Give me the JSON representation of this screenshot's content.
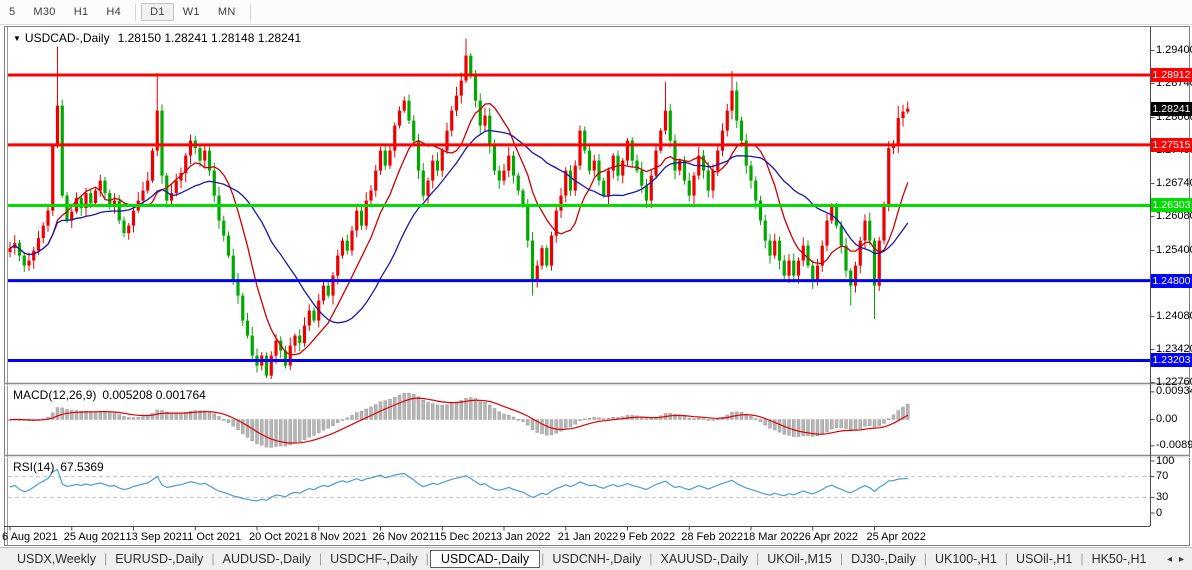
{
  "toolbar": {
    "timeframes": [
      "5",
      "M30",
      "H1",
      "H4",
      "D1",
      "W1",
      "MN"
    ],
    "active": "D1"
  },
  "chart": {
    "title": {
      "dropdown_icon": "▼",
      "symbol": "USDCAD-,Daily",
      "ohlc": "1.28150 1.28241 1.28148 1.28241"
    }
  },
  "indicators": {
    "macd": {
      "name": "MACD(12,26,9)",
      "values": "0.005208 0.001764"
    },
    "rsi": {
      "name": "RSI(14)",
      "value": "67.5369"
    }
  },
  "chart_data": {
    "type": "candlestick",
    "symbol": "USDCAD",
    "period": "Daily",
    "ohlc_current": {
      "open": "1.28150",
      "high": "1.28241",
      "low": "1.28148",
      "close": "1.28241"
    },
    "y_axis": {
      "ticks": [
        "1.29400",
        "1.28740",
        "1.28060",
        "1.27400",
        "1.26740",
        "1.26080",
        "1.25400",
        "1.24740",
        "1.24080",
        "1.23420",
        "1.22760"
      ]
    },
    "x_axis": {
      "labels": [
        "6 Aug 2021",
        "25 Aug 2021",
        "13 Sep 2021",
        "1 Oct 2021",
        "20 Oct 2021",
        "8 Nov 2021",
        "26 Nov 2021",
        "15 Dec 2021",
        "3 Jan 2022",
        "21 Jan 2022",
        "9 Feb 2022",
        "28 Feb 2022",
        "18 Mar 2022",
        "6 Apr 2022",
        "25 Apr 2022"
      ],
      "bar_indices": [
        0,
        13,
        26,
        39,
        52,
        65,
        78,
        91,
        104,
        117,
        130,
        143,
        156,
        169,
        182
      ]
    },
    "horizontal_lines": [
      {
        "price": "1.28912",
        "color": "#FF0000"
      },
      {
        "price": "1.27515",
        "color": "#FF0000"
      },
      {
        "price": "1.26303",
        "color": "#00DD00"
      },
      {
        "price": "1.24800",
        "color": "#0000FF"
      },
      {
        "price": "1.23203",
        "color": "#0000FF"
      }
    ],
    "current_price": {
      "price": "1.28241",
      "bg": "#000000"
    },
    "candle_colors": {
      "bull": "#EE0000",
      "bear": "#00A800"
    },
    "moving_averages": [
      {
        "name": "ma-fast",
        "period": 10,
        "color": "#CC0000"
      },
      {
        "name": "ma-slow",
        "period": 24,
        "color": "#1818AA"
      }
    ],
    "candles": {
      "closes": [
        1.2545,
        1.2555,
        1.253,
        1.251,
        1.252,
        1.254,
        1.2565,
        1.259,
        1.262,
        1.275,
        1.283,
        1.265,
        1.26,
        1.2618,
        1.2645,
        1.2625,
        1.2655,
        1.2635,
        1.266,
        1.268,
        1.2655,
        1.263,
        1.264,
        1.26,
        1.2575,
        1.259,
        1.262,
        1.264,
        1.266,
        1.268,
        1.274,
        1.282,
        1.269,
        1.264,
        1.2655,
        1.268,
        1.2695,
        1.273,
        1.276,
        1.2745,
        1.272,
        1.274,
        1.27,
        1.265,
        1.26,
        1.257,
        1.253,
        1.248,
        1.245,
        1.24,
        1.237,
        1.233,
        1.231,
        1.233,
        1.229,
        1.233,
        1.236,
        1.234,
        1.231,
        1.235,
        1.237,
        1.2355,
        1.239,
        1.242,
        1.24,
        1.244,
        1.247,
        1.245,
        1.249,
        1.253,
        1.256,
        1.254,
        1.258,
        1.262,
        1.259,
        1.264,
        1.266,
        1.27,
        1.274,
        1.271,
        1.274,
        1.279,
        1.282,
        1.284,
        1.28,
        1.276,
        1.27,
        1.265,
        1.268,
        1.272,
        1.27,
        1.274,
        1.278,
        1.282,
        1.285,
        1.288,
        1.293,
        1.289,
        1.284,
        1.279,
        1.281,
        1.275,
        1.27,
        1.268,
        1.27,
        1.273,
        1.269,
        1.266,
        1.263,
        1.256,
        1.248,
        1.251,
        1.2545,
        1.251,
        1.257,
        1.262,
        1.265,
        1.27,
        1.266,
        1.271,
        1.278,
        1.274,
        1.27,
        1.272,
        1.268,
        1.265,
        1.27,
        1.273,
        1.269,
        1.272,
        1.276,
        1.272,
        1.27,
        1.267,
        1.264,
        1.269,
        1.274,
        1.278,
        1.282,
        1.276,
        1.27,
        1.272,
        1.268,
        1.265,
        1.269,
        1.273,
        1.27,
        1.266,
        1.27,
        1.274,
        1.278,
        1.282,
        1.286,
        1.28,
        1.276,
        1.271,
        1.268,
        1.264,
        1.26,
        1.256,
        1.253,
        1.256,
        1.252,
        1.249,
        1.252,
        1.249,
        1.252,
        1.255,
        1.251,
        1.248,
        1.251,
        1.255,
        1.26,
        1.263,
        1.259,
        1.255,
        1.25,
        1.247,
        1.251,
        1.256,
        1.26,
        1.256,
        1.247,
        1.256,
        1.263,
        1.2745,
        1.275,
        1.2805,
        1.2818,
        1.2824
      ],
      "wick_overrides": {
        "10": {
          "h": 1.2948
        },
        "31": {
          "h": 1.2895
        },
        "54": {
          "l": 1.2285
        },
        "96": {
          "h": 1.2964
        },
        "110": {
          "l": 1.245
        },
        "138": {
          "h": 1.2877
        },
        "152": {
          "h": 1.2899
        },
        "177": {
          "l": 1.243
        },
        "182": {
          "l": 1.2403
        },
        "187": {
          "h": 1.283
        },
        "189": {
          "h": 1.2838
        }
      }
    },
    "macd": {
      "params": [
        12,
        26,
        9
      ],
      "ticks": [
        "0.009345",
        "0.00",
        "-0.00890"
      ],
      "hist_color": "#B6B6B6",
      "hist_border": "#8E8E8E",
      "signal_color": "#E00000"
    },
    "rsi": {
      "period": 14,
      "ticks": [
        "100",
        "70",
        "30",
        "0"
      ],
      "levels": [
        70,
        30
      ],
      "line_color": "#4C9CD4",
      "level_color": "#C0C0C0"
    }
  },
  "tabs": {
    "items": [
      "USDX,Weekly",
      "EURUSD-,Daily",
      "AUDUSD-,Daily",
      "USDCHF-,Daily",
      "USDCAD-,Daily",
      "USDCNH-,Daily",
      "XAUUSD-,Daily",
      "UKOil-,M15",
      "DJ30-,Daily",
      "UK100-,H1",
      "USOil-,H1",
      "HK50-,H1"
    ],
    "active": "USDCAD-,Daily",
    "scroll_left": "◂",
    "scroll_right": "▸"
  }
}
